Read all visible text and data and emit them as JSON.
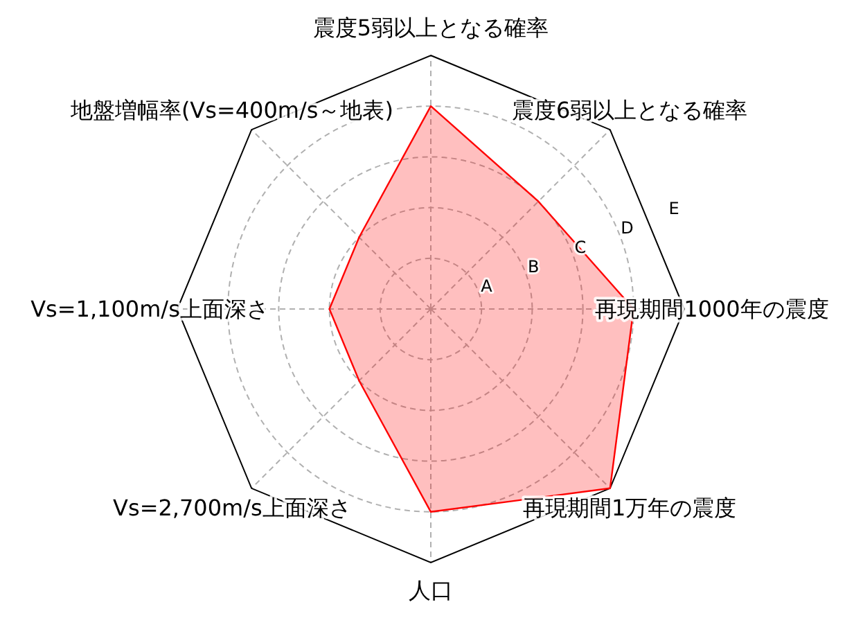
{
  "chart_data": {
    "type": "radar",
    "categories": [
      "震度5弱以上となる確率",
      "震度6弱以上となる確率",
      "再現期間1000年の震度",
      "再現期間1万年の震度",
      "人口",
      "Vs=2,700m/s上面深さ",
      "Vs=1,100m/s上面深さ",
      "地盤増幅率(Vs=400m/s～地表)"
    ],
    "series": [
      {
        "color": "#ff0000",
        "values": [
          4,
          3,
          4,
          5,
          4,
          2,
          2,
          2
        ]
      }
    ],
    "ylim": [
      0,
      5
    ],
    "yticks": [
      {
        "value": 1,
        "label": "A"
      },
      {
        "value": 2,
        "label": "B"
      },
      {
        "value": 3,
        "label": "C"
      },
      {
        "value": 4,
        "label": "D"
      },
      {
        "value": 5,
        "label": "E"
      }
    ],
    "grid": true
  }
}
